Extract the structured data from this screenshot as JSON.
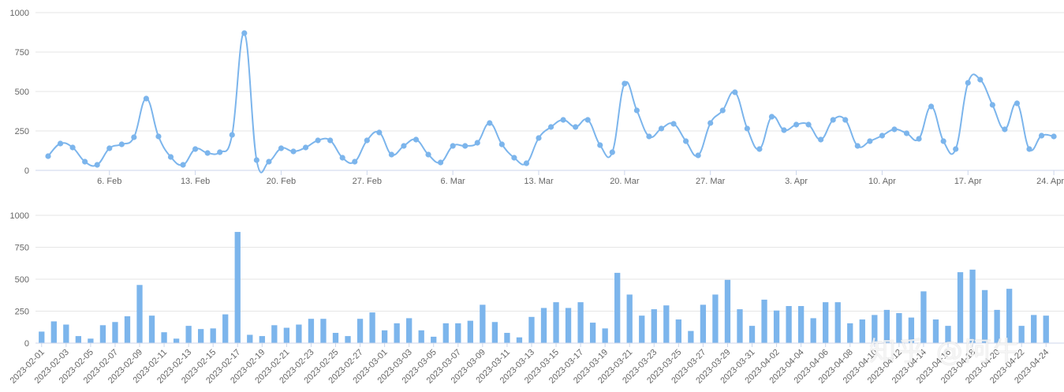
{
  "chart_data": [
    {
      "type": "line",
      "smooth": true,
      "color": "#7cb5ec",
      "ylim": [
        0,
        1000
      ],
      "yticks": [
        0,
        250,
        500,
        750,
        1000
      ],
      "grid": true,
      "x_start": "2023-02-01",
      "x_end": "2023-04-24",
      "xtick_labels": [
        "6. Feb",
        "13. Feb",
        "20. Feb",
        "27. Feb",
        "6. Mar",
        "13. Mar",
        "20. Mar",
        "27. Mar",
        "3. Apr",
        "10. Apr",
        "17. Apr",
        "24. Apr"
      ],
      "series": [
        {
          "values": [
            90,
            170,
            145,
            55,
            35,
            140,
            165,
            210,
            455,
            215,
            85,
            35,
            135,
            110,
            115,
            225,
            870,
            65,
            55,
            140,
            120,
            145,
            190,
            190,
            80,
            55,
            190,
            240,
            100,
            155,
            195,
            100,
            50,
            155,
            155,
            175,
            300,
            165,
            80,
            45,
            205,
            275,
            320,
            275,
            320,
            160,
            115,
            550,
            380,
            215,
            265,
            295,
            185,
            95,
            300,
            380,
            495,
            265,
            135,
            340,
            255,
            290,
            290,
            195,
            320,
            320,
            155,
            185,
            220,
            260,
            235,
            200,
            405,
            185,
            135,
            555,
            575,
            415,
            260,
            425,
            135,
            220,
            215
          ]
        }
      ]
    },
    {
      "type": "bar",
      "color": "#7cb5ec",
      "ylim": [
        0,
        1000
      ],
      "yticks": [
        0,
        250,
        500,
        750,
        1000
      ],
      "grid": true,
      "categories": [
        "2023-02-01",
        "2023-02-02",
        "2023-02-03",
        "2023-02-04",
        "2023-02-05",
        "2023-02-06",
        "2023-02-07",
        "2023-02-08",
        "2023-02-09",
        "2023-02-10",
        "2023-02-11",
        "2023-02-12",
        "2023-02-13",
        "2023-02-14",
        "2023-02-15",
        "2023-02-16",
        "2023-02-17",
        "2023-02-18",
        "2023-02-19",
        "2023-02-20",
        "2023-02-21",
        "2023-02-22",
        "2023-02-23",
        "2023-02-24",
        "2023-02-25",
        "2023-02-26",
        "2023-02-27",
        "2023-02-28",
        "2023-03-01",
        "2023-03-02",
        "2023-03-03",
        "2023-03-04",
        "2023-03-05",
        "2023-03-06",
        "2023-03-07",
        "2023-03-08",
        "2023-03-09",
        "2023-03-10",
        "2023-03-11",
        "2023-03-12",
        "2023-03-13",
        "2023-03-14",
        "2023-03-15",
        "2023-03-16",
        "2023-03-17",
        "2023-03-18",
        "2023-03-19",
        "2023-03-20",
        "2023-03-21",
        "2023-03-22",
        "2023-03-23",
        "2023-03-24",
        "2023-03-25",
        "2023-03-26",
        "2023-03-27",
        "2023-03-28",
        "2023-03-29",
        "2023-03-30",
        "2023-03-31",
        "2023-04-01",
        "2023-04-02",
        "2023-04-03",
        "2023-04-04",
        "2023-04-05",
        "2023-04-06",
        "2023-04-07",
        "2023-04-08",
        "2023-04-09",
        "2023-04-10",
        "2023-04-11",
        "2023-04-12",
        "2023-04-13",
        "2023-04-14",
        "2023-04-15",
        "2023-04-16",
        "2023-04-17",
        "2023-04-18",
        "2023-04-19",
        "2023-04-20",
        "2023-04-21",
        "2023-04-22",
        "2023-04-23",
        "2023-04-24"
      ],
      "values": [
        90,
        170,
        145,
        55,
        35,
        140,
        165,
        210,
        455,
        215,
        85,
        35,
        135,
        110,
        115,
        225,
        870,
        65,
        55,
        140,
        120,
        145,
        190,
        190,
        80,
        55,
        190,
        240,
        100,
        155,
        195,
        100,
        50,
        155,
        155,
        175,
        300,
        165,
        80,
        45,
        205,
        275,
        320,
        275,
        320,
        160,
        115,
        550,
        380,
        215,
        265,
        295,
        185,
        95,
        300,
        380,
        495,
        265,
        135,
        340,
        255,
        290,
        290,
        195,
        320,
        320,
        155,
        185,
        220,
        260,
        235,
        200,
        405,
        185,
        135,
        555,
        575,
        415,
        260,
        425,
        135,
        220,
        215
      ],
      "xtick_every": 2
    }
  ],
  "watermark": {
    "text": "知乎 @阿牛"
  }
}
